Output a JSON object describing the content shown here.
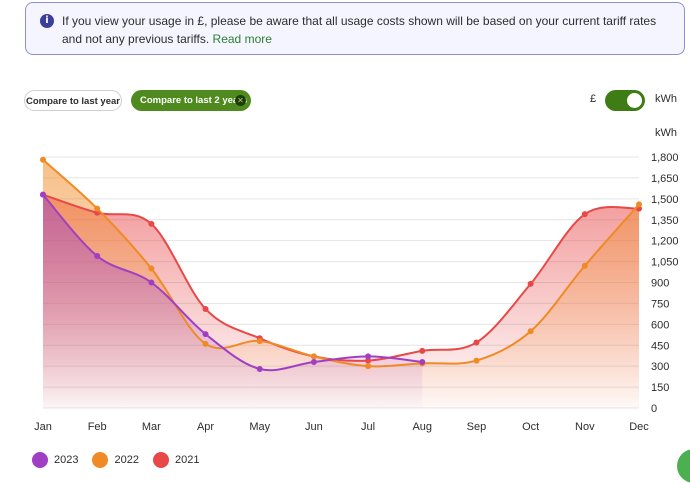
{
  "notice": {
    "text": "If you view your usage in £, please be aware that all usage costs shown will be based on your current tariff rates and not any previous tariffs.",
    "link": "Read more"
  },
  "filters": {
    "last_year": "Compare to last year",
    "last_2_years": "Compare to last 2 years",
    "close_glyph": "✕"
  },
  "units": {
    "gbp": "£",
    "kwh": "kWh",
    "toggle_on": true
  },
  "chart_data": {
    "type": "area",
    "ylabel": "kWh",
    "ylim": [
      0,
      1800
    ],
    "yticks": [
      0,
      150,
      300,
      450,
      600,
      750,
      900,
      1050,
      1200,
      1350,
      1500,
      1650,
      1800
    ],
    "ytick_labels": [
      "0",
      "150",
      "300",
      "450",
      "600",
      "750",
      "900",
      "1,050",
      "1,200",
      "1,350",
      "1,500",
      "1,650",
      "1,800"
    ],
    "grid": true,
    "legend": "bottom-left",
    "categories": [
      "Jan",
      "Feb",
      "Mar",
      "Apr",
      "May",
      "Jun",
      "Jul",
      "Aug",
      "Sep",
      "Oct",
      "Nov",
      "Dec"
    ],
    "series": [
      {
        "name": "2023",
        "color": "#a03fc4",
        "values": [
          1530,
          1090,
          900,
          530,
          280,
          330,
          370,
          330,
          null,
          null,
          null,
          null
        ]
      },
      {
        "name": "2022",
        "color": "#f08a24",
        "values": [
          1780,
          1430,
          1000,
          460,
          480,
          370,
          300,
          320,
          340,
          550,
          1020,
          1460
        ]
      },
      {
        "name": "2021",
        "color": "#e84848",
        "values": [
          1530,
          1400,
          1320,
          710,
          500,
          370,
          340,
          410,
          470,
          890,
          1390,
          1430
        ]
      }
    ]
  }
}
